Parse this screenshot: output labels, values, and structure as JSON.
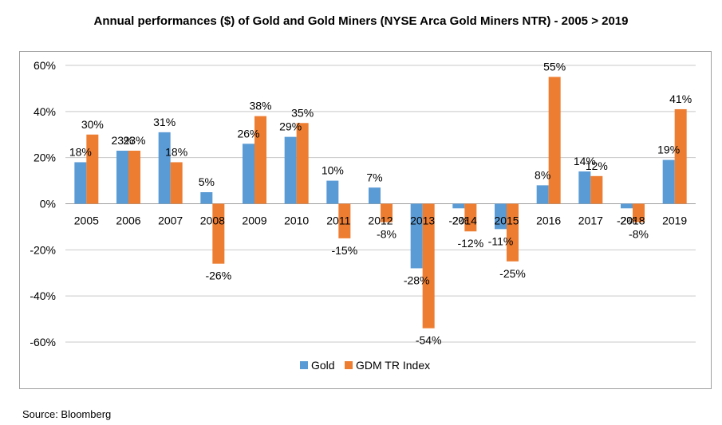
{
  "chart_data": {
    "type": "bar",
    "title": "Annual performances ($) of Gold and Gold Miners (NYSE Arca Gold Miners NTR) - 2005 > 2019",
    "categories": [
      "2005",
      "2006",
      "2007",
      "2008",
      "2009",
      "2010",
      "2011",
      "2012",
      "2013",
      "2014",
      "2015",
      "2016",
      "2017",
      "2018",
      "2019"
    ],
    "series": [
      {
        "name": "Gold",
        "color": "#5b9bd5",
        "values": [
          18,
          23,
          31,
          5,
          26,
          29,
          10,
          7,
          -28,
          -2,
          -11,
          8,
          14,
          -2,
          19
        ]
      },
      {
        "name": "GDM TR Index",
        "color": "#ed7d31",
        "values": [
          30,
          23,
          18,
          -26,
          38,
          35,
          -15,
          -8,
          -54,
          -12,
          -25,
          55,
          12,
          -8,
          41
        ]
      }
    ],
    "ylim": [
      -60,
      60
    ],
    "yticks": [
      -60,
      -40,
      -20,
      0,
      20,
      40,
      60
    ],
    "ytick_labels": [
      "-60%",
      "-40%",
      "-20%",
      "0%",
      "20%",
      "40%",
      "60%"
    ],
    "value_suffix": "%",
    "grid": true,
    "legend_position": "bottom",
    "xlabel": "",
    "ylabel": ""
  },
  "source": "Source: Bloomberg"
}
